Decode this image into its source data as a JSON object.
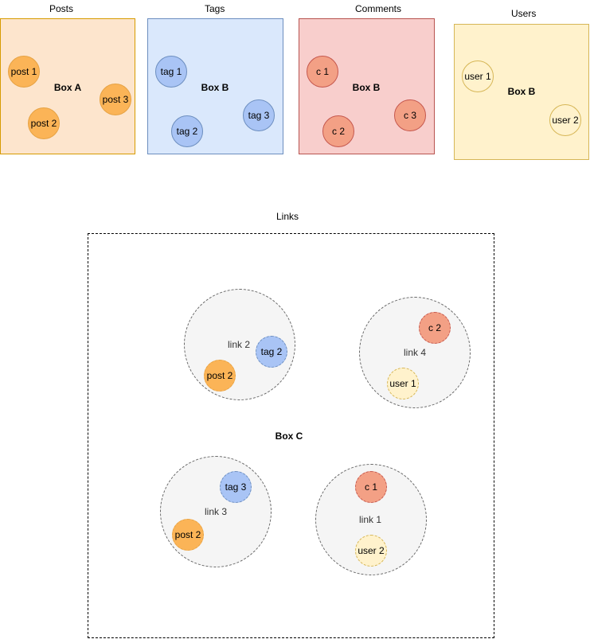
{
  "titles": {
    "posts": "Posts",
    "tags": "Tags",
    "comments": "Comments",
    "users": "Users",
    "links": "Links"
  },
  "boxes": {
    "posts": "Box A",
    "tags": "Box B",
    "comments": "Box B",
    "users": "Box B",
    "links": "Box C"
  },
  "posts": [
    "post 1",
    "post 2",
    "post 3"
  ],
  "tags": [
    "tag 1",
    "tag 2",
    "tag 3"
  ],
  "comments": [
    "c 1",
    "c 2",
    "c 3"
  ],
  "users": [
    "user 1",
    "user 2"
  ],
  "links": [
    {
      "label": "link 2",
      "a": "tag 2",
      "b": "post 2"
    },
    {
      "label": "link  4",
      "a": "c 2",
      "b": "user 1"
    },
    {
      "label": "link  3",
      "a": "tag 3",
      "b": "post 2"
    },
    {
      "label": "link 1",
      "a": "c 1",
      "b": "user 2"
    }
  ],
  "colors": {
    "posts_fill": "#fde5cd",
    "tags_fill": "#dae8fc",
    "comments_fill": "#f8cecc",
    "users_fill": "#fff2cc",
    "post_node": "#fbb457",
    "tag_node": "#a9c4f5",
    "comment_node": "#f3a085",
    "user_node": "#fff2cc",
    "link_fill": "#f5f5f5"
  }
}
